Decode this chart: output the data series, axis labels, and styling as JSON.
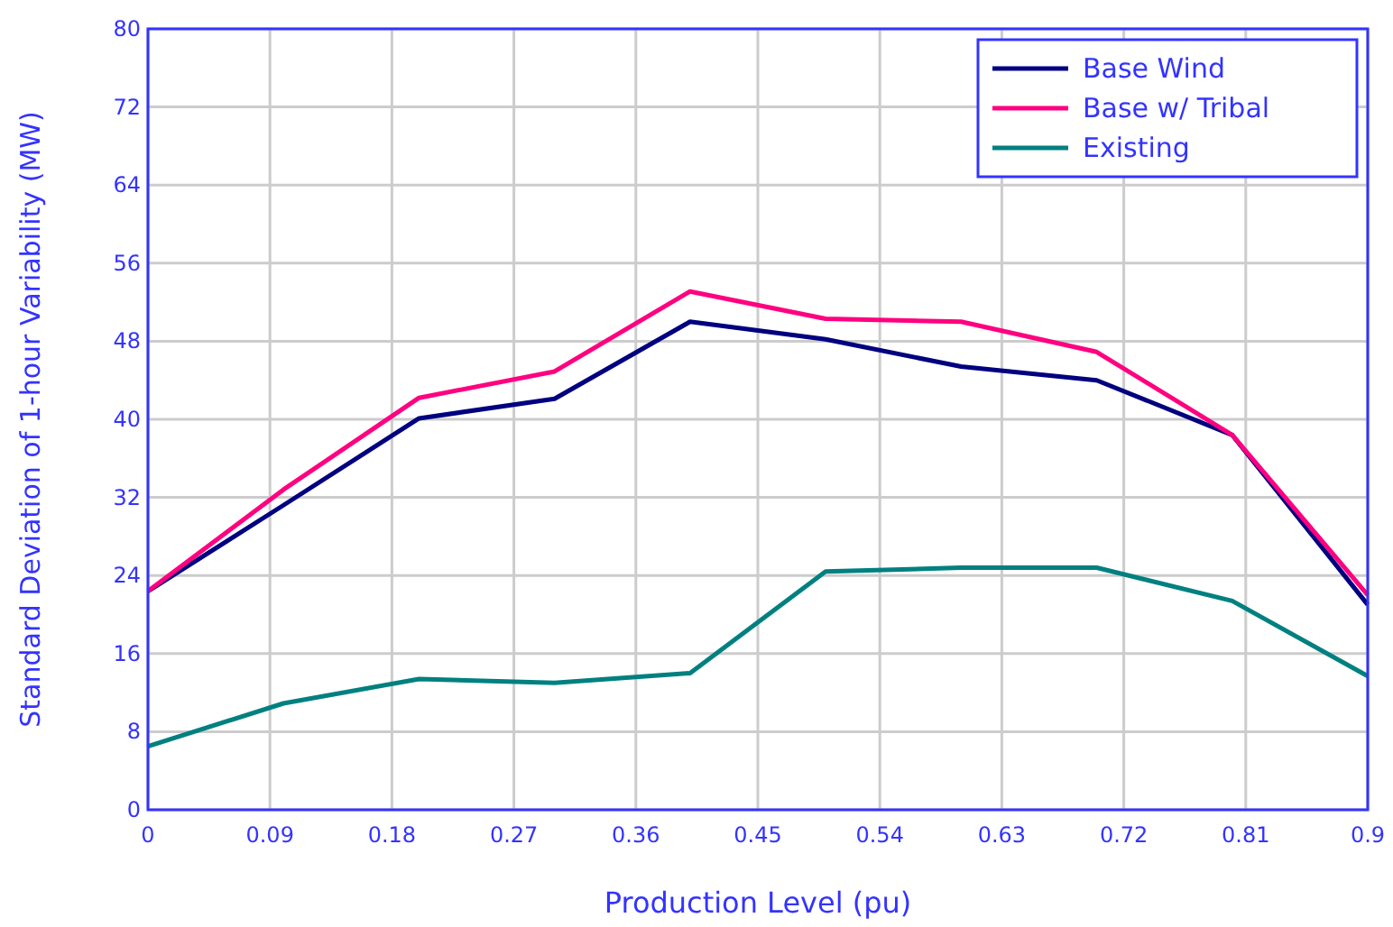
{
  "chart_data": {
    "type": "line",
    "xlabel": "Production Level (pu)",
    "ylabel": "Standard Deviation of 1-hour Variability (MW)",
    "x": [
      0,
      0.1,
      0.2,
      0.3,
      0.4,
      0.5,
      0.6,
      0.7,
      0.8,
      0.9
    ],
    "series": [
      {
        "name": "Base Wind",
        "color": "#000080",
        "values": [
          22.4,
          31.2,
          40.1,
          42.1,
          50,
          48.2,
          45.4,
          44,
          38.4,
          21
        ]
      },
      {
        "name": "Base w/ Tribal",
        "color": "#ff0080",
        "values": [
          22.4,
          32.8,
          42.2,
          44.9,
          53.1,
          50.3,
          50,
          46.9,
          38.4,
          22
        ]
      },
      {
        "name": "Existing",
        "color": "#008080",
        "values": [
          6.5,
          10.9,
          13.4,
          13,
          14,
          24.4,
          24.8,
          24.8,
          21.4,
          13.7
        ]
      }
    ],
    "xlim": [
      0,
      0.9
    ],
    "xticks": [
      0,
      0.09,
      0.18,
      0.27,
      0.36,
      0.45,
      0.54,
      0.63,
      0.72,
      0.81,
      0.9
    ],
    "ylim": [
      0,
      80
    ],
    "yticks": [
      0,
      8,
      16,
      24,
      32,
      40,
      48,
      56,
      64,
      72,
      80
    ],
    "grid": true,
    "legend": "top right",
    "marker": "none",
    "line_style": "solid"
  }
}
